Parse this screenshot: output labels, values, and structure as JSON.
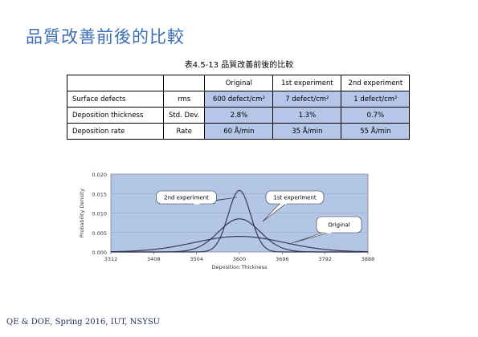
{
  "slide": {
    "title": "品質改善前後的比較",
    "caption": "表4.5-13  品質改善前後的比較",
    "footer": "QE & DOE, Spring 2016, IUT, NSYSU"
  },
  "table": {
    "headers": [
      "",
      "",
      "Original",
      "1st experiment",
      "2nd experiment"
    ],
    "rows": [
      {
        "label": "Surface defects",
        "unit": "rms",
        "values": [
          "600  defect/cm²",
          "7  defect/cm²",
          "1  defect/cm²"
        ]
      },
      {
        "label": "Deposition thickness",
        "unit": "Std. Dev.",
        "values": [
          "2.8%",
          "1.3%",
          "0.7%"
        ]
      },
      {
        "label": "Deposition rate",
        "unit": "Rate",
        "values": [
          "60 Å/min",
          "35 Å/min",
          "55 Å/min"
        ]
      }
    ]
  },
  "chart_data": {
    "type": "line",
    "title": "",
    "xlabel": "Deposition Thickness",
    "ylabel": "Probability Density",
    "xlim": [
      3312,
      3888
    ],
    "ylim": [
      0,
      0.02
    ],
    "x_ticks": [
      "3312",
      "3408",
      "3504",
      "3600",
      "3696",
      "3792",
      "3888"
    ],
    "y_ticks": [
      "0.000",
      "0.005",
      "0.010",
      "0.015",
      "0.020"
    ],
    "grid": true,
    "mean": 3600,
    "series": [
      {
        "name": "Original",
        "std_dev": 100.8,
        "peak": 0.004
      },
      {
        "name": "1st experiment",
        "std_dev": 46.8,
        "peak": 0.0085
      },
      {
        "name": "2nd experiment",
        "std_dev": 25.2,
        "peak": 0.0158
      }
    ],
    "callouts": [
      "2nd experiment",
      "1st experiment",
      "Original"
    ],
    "colors": {
      "plot_bg": "#b3c6e6",
      "line": "#3a3a52"
    }
  }
}
